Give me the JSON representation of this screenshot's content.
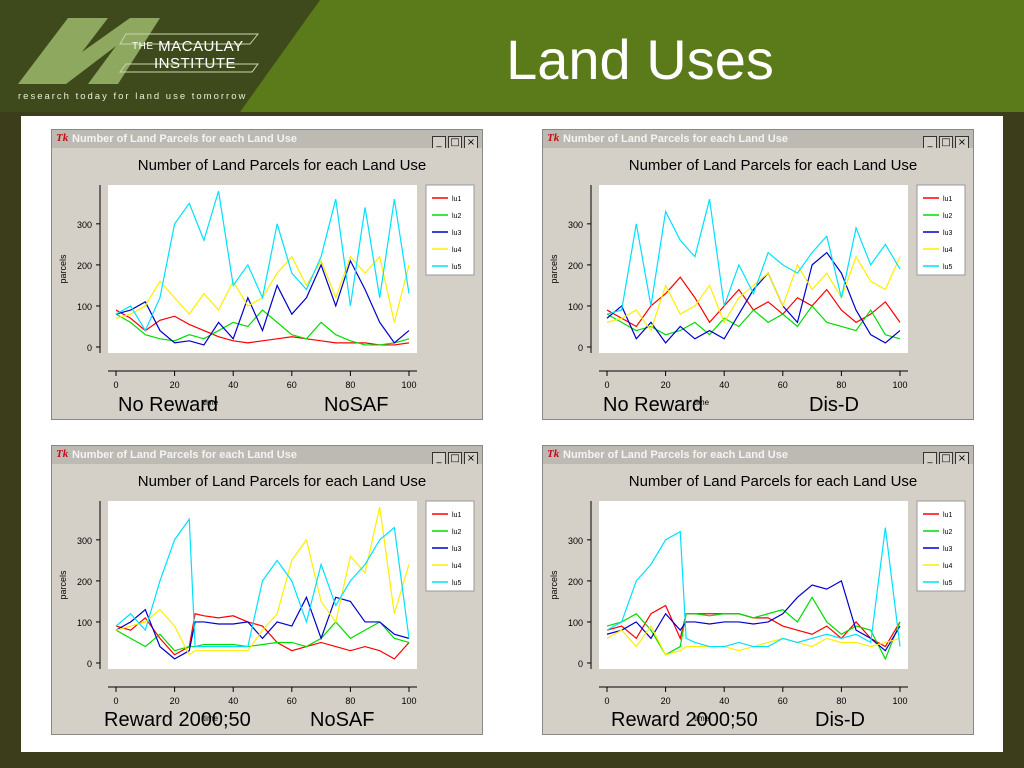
{
  "slide": {
    "title": "Land Uses",
    "logo": {
      "the": "THE",
      "line1": "MACAULAY",
      "line2": "INSTITUTE",
      "tagline": "research today for land use tomorrow"
    },
    "colors": {
      "header": "#5b7a1a",
      "background": "#3c3d1a"
    }
  },
  "window": {
    "title": "Number of Land Parcels for each Land Use",
    "tk_badge": "Tk",
    "min": "_",
    "max": "□",
    "close": "×"
  },
  "chart_data": [
    {
      "type": "line",
      "title": "Number of Land Parcels for each Land Use",
      "xlabel": "time",
      "ylabel": "parcels",
      "xlim": [
        0,
        100
      ],
      "ylim": [
        0,
        380
      ],
      "xticks": [
        "0",
        "20",
        "40",
        "60",
        "80",
        "100"
      ],
      "yticks": [
        "0",
        "100",
        "200",
        "300"
      ],
      "legend": "right",
      "caption_left": "No Reward",
      "caption_right": "NoSAF",
      "x": [
        0,
        5,
        10,
        15,
        20,
        25,
        30,
        35,
        40,
        45,
        50,
        55,
        60,
        65,
        70,
        75,
        80,
        85,
        90,
        95,
        100
      ],
      "series": [
        {
          "name": "lu1",
          "color": "#ff0000",
          "values": [
            90,
            70,
            40,
            65,
            75,
            55,
            40,
            25,
            15,
            10,
            15,
            20,
            25,
            20,
            15,
            10,
            10,
            10,
            5,
            5,
            10
          ]
        },
        {
          "name": "lu2",
          "color": "#00dd00",
          "values": [
            80,
            60,
            30,
            20,
            15,
            30,
            20,
            40,
            60,
            50,
            90,
            60,
            30,
            20,
            60,
            30,
            15,
            5,
            5,
            10,
            20
          ]
        },
        {
          "name": "lu3",
          "color": "#0000cc",
          "values": [
            80,
            90,
            110,
            40,
            10,
            15,
            5,
            60,
            20,
            120,
            40,
            150,
            80,
            120,
            200,
            100,
            210,
            140,
            60,
            10,
            40
          ]
        },
        {
          "name": "lu4",
          "color": "#ffee00",
          "values": [
            70,
            80,
            100,
            160,
            120,
            80,
            130,
            90,
            160,
            100,
            120,
            180,
            220,
            150,
            210,
            120,
            220,
            180,
            220,
            60,
            200
          ]
        },
        {
          "name": "lu5",
          "color": "#00e0ff",
          "values": [
            80,
            100,
            40,
            120,
            300,
            350,
            260,
            380,
            150,
            200,
            120,
            300,
            180,
            140,
            220,
            360,
            100,
            340,
            120,
            360,
            130
          ]
        }
      ]
    },
    {
      "type": "line",
      "title": "Number of Land Parcels for each Land Use",
      "xlabel": "time",
      "ylabel": "parcels",
      "xlim": [
        0,
        100
      ],
      "ylim": [
        0,
        380
      ],
      "xticks": [
        "0",
        "20",
        "40",
        "60",
        "80",
        "100"
      ],
      "yticks": [
        "0",
        "100",
        "200",
        "300"
      ],
      "legend": "right",
      "caption_left": "No Reward",
      "caption_right": "Dis-D",
      "x": [
        0,
        5,
        10,
        15,
        20,
        25,
        30,
        35,
        40,
        45,
        50,
        55,
        60,
        65,
        70,
        75,
        80,
        85,
        90,
        95,
        100
      ],
      "series": [
        {
          "name": "lu1",
          "color": "#ff0000",
          "values": [
            90,
            70,
            50,
            100,
            130,
            170,
            120,
            60,
            100,
            140,
            90,
            110,
            80,
            120,
            100,
            140,
            90,
            60,
            80,
            110,
            60
          ]
        },
        {
          "name": "lu2",
          "color": "#00dd00",
          "values": [
            80,
            60,
            40,
            50,
            30,
            40,
            60,
            30,
            70,
            50,
            90,
            60,
            80,
            50,
            100,
            60,
            50,
            40,
            90,
            30,
            20
          ]
        },
        {
          "name": "lu3",
          "color": "#0000cc",
          "values": [
            70,
            100,
            20,
            60,
            10,
            50,
            20,
            40,
            20,
            80,
            140,
            180,
            100,
            60,
            200,
            230,
            180,
            90,
            30,
            10,
            40
          ]
        },
        {
          "name": "lu4",
          "color": "#ffee00",
          "values": [
            60,
            70,
            90,
            40,
            150,
            80,
            100,
            150,
            60,
            120,
            150,
            180,
            100,
            200,
            140,
            180,
            120,
            220,
            160,
            140,
            220
          ]
        },
        {
          "name": "lu5",
          "color": "#00e0ff",
          "values": [
            80,
            90,
            300,
            100,
            330,
            260,
            220,
            360,
            100,
            200,
            130,
            230,
            200,
            180,
            230,
            270,
            120,
            290,
            200,
            250,
            190
          ]
        }
      ]
    },
    {
      "type": "line",
      "title": "Number of Land Parcels for each Land Use",
      "xlabel": "time",
      "ylabel": "parcels",
      "xlim": [
        0,
        100
      ],
      "ylim": [
        0,
        380
      ],
      "xticks": [
        "0",
        "20",
        "40",
        "60",
        "80",
        "100"
      ],
      "yticks": [
        "0",
        "100",
        "200",
        "300"
      ],
      "legend": "right",
      "caption_left": "Reward 2000;50",
      "caption_right": "NoSAF",
      "x": [
        0,
        5,
        10,
        15,
        20,
        25,
        27,
        30,
        35,
        40,
        45,
        50,
        55,
        60,
        65,
        70,
        75,
        80,
        85,
        90,
        95,
        100
      ],
      "series": [
        {
          "name": "lu1",
          "color": "#ff0000",
          "values": [
            90,
            80,
            110,
            60,
            20,
            40,
            120,
            115,
            110,
            115,
            100,
            90,
            50,
            30,
            40,
            50,
            40,
            30,
            40,
            30,
            10,
            50
          ]
        },
        {
          "name": "lu2",
          "color": "#00dd00",
          "values": [
            80,
            60,
            40,
            70,
            30,
            40,
            40,
            45,
            45,
            45,
            40,
            45,
            50,
            50,
            40,
            60,
            100,
            60,
            80,
            100,
            60,
            50
          ]
        },
        {
          "name": "lu3",
          "color": "#0000cc",
          "values": [
            80,
            100,
            130,
            40,
            10,
            30,
            100,
            100,
            95,
            95,
            100,
            60,
            100,
            90,
            160,
            60,
            160,
            150,
            100,
            100,
            70,
            60
          ]
        },
        {
          "name": "lu4",
          "color": "#ffee00",
          "values": [
            80,
            90,
            100,
            130,
            90,
            20,
            30,
            30,
            30,
            30,
            30,
            80,
            120,
            250,
            300,
            150,
            100,
            260,
            220,
            380,
            120,
            240
          ]
        },
        {
          "name": "lu5",
          "color": "#00e0ff",
          "values": [
            90,
            120,
            80,
            200,
            300,
            350,
            40,
            40,
            40,
            40,
            40,
            200,
            250,
            200,
            100,
            240,
            140,
            200,
            240,
            300,
            330,
            60
          ]
        }
      ]
    },
    {
      "type": "line",
      "title": "Number of Land Parcels for each Land Use",
      "xlabel": "time",
      "ylabel": "parcels",
      "xlim": [
        0,
        100
      ],
      "ylim": [
        0,
        380
      ],
      "xticks": [
        "0",
        "20",
        "40",
        "60",
        "80",
        "100"
      ],
      "yticks": [
        "0",
        "100",
        "200",
        "300"
      ],
      "legend": "right",
      "caption_left": "Reward 2000;50",
      "caption_right": "Dis-D",
      "x": [
        0,
        5,
        10,
        15,
        20,
        25,
        27,
        30,
        35,
        40,
        45,
        50,
        55,
        60,
        65,
        70,
        75,
        80,
        85,
        90,
        95,
        100
      ],
      "series": [
        {
          "name": "lu1",
          "color": "#ff0000",
          "values": [
            80,
            90,
            60,
            120,
            140,
            60,
            120,
            120,
            120,
            120,
            120,
            110,
            110,
            90,
            80,
            70,
            90,
            60,
            100,
            60,
            40,
            100
          ]
        },
        {
          "name": "lu2",
          "color": "#00dd00",
          "values": [
            90,
            100,
            120,
            80,
            20,
            40,
            120,
            120,
            115,
            120,
            120,
            110,
            120,
            130,
            100,
            160,
            100,
            70,
            90,
            80,
            10,
            100
          ]
        },
        {
          "name": "lu3",
          "color": "#0000cc",
          "values": [
            70,
            80,
            100,
            60,
            120,
            80,
            100,
            100,
            95,
            100,
            100,
            95,
            100,
            120,
            160,
            190,
            180,
            200,
            80,
            60,
            30,
            90
          ]
        },
        {
          "name": "lu4",
          "color": "#ffee00",
          "values": [
            60,
            80,
            40,
            90,
            20,
            30,
            40,
            40,
            40,
            40,
            30,
            40,
            50,
            60,
            50,
            40,
            60,
            50,
            50,
            40,
            50,
            60
          ]
        },
        {
          "name": "lu5",
          "color": "#00e0ff",
          "values": [
            80,
            100,
            200,
            240,
            300,
            320,
            60,
            50,
            40,
            40,
            50,
            40,
            40,
            60,
            50,
            60,
            70,
            60,
            70,
            50,
            330,
            40
          ]
        }
      ]
    }
  ]
}
